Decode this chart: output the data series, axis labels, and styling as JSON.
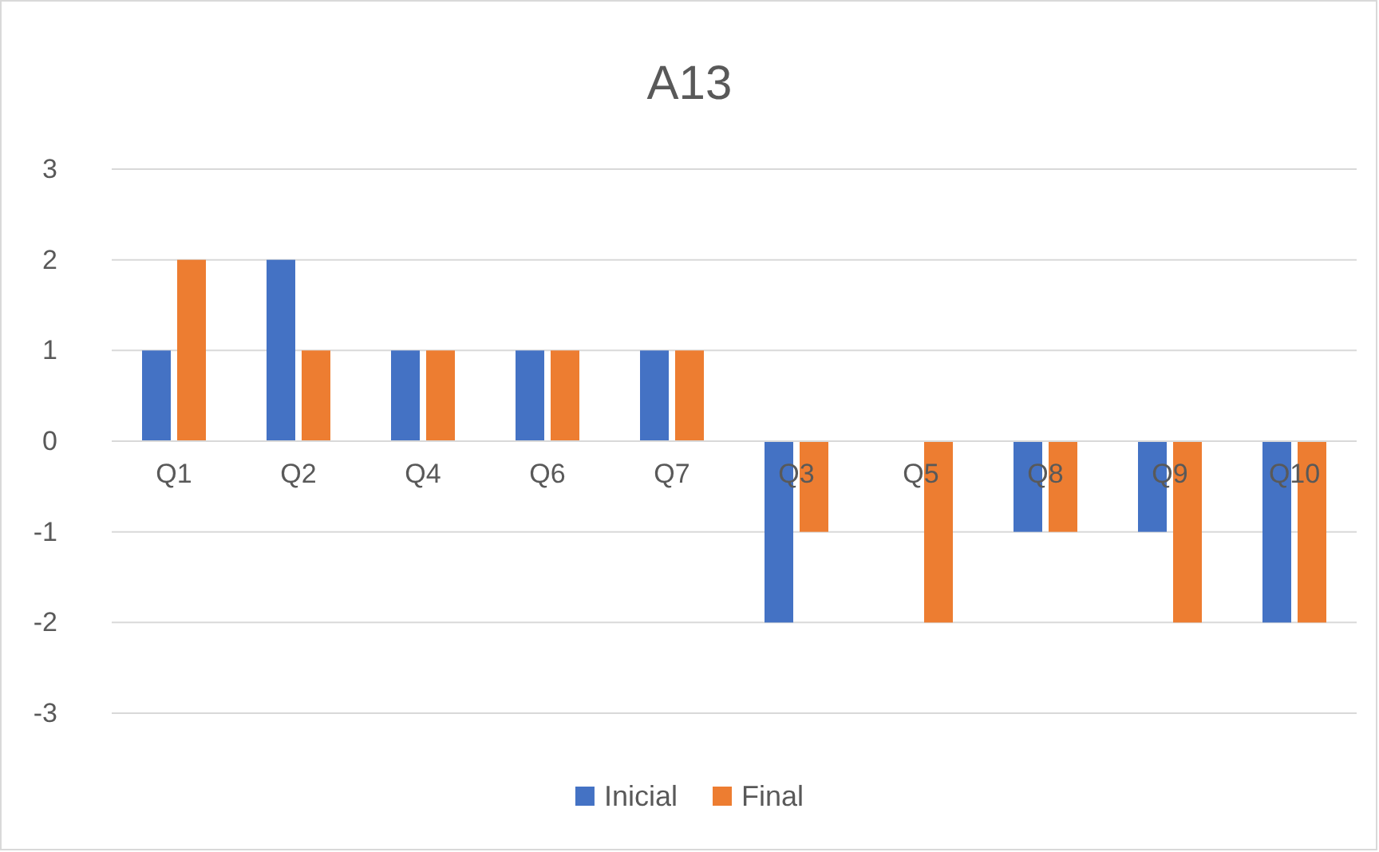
{
  "chart_data": {
    "type": "bar",
    "title": "A13",
    "categories": [
      "Q1",
      "Q2",
      "Q4",
      "Q6",
      "Q7",
      "Q3",
      "Q5",
      "Q8",
      "Q9",
      "Q10"
    ],
    "series": [
      {
        "name": "Inicial",
        "color": "#4472c4",
        "values": [
          1,
          2,
          1,
          1,
          1,
          -2,
          0,
          -1,
          -1,
          -2
        ]
      },
      {
        "name": "Final",
        "color": "#ed7d31",
        "values": [
          2,
          1,
          1,
          1,
          1,
          -1,
          -2,
          -1,
          -2,
          -2
        ]
      }
    ],
    "ylim": [
      -3,
      3
    ],
    "yticks": [
      -3,
      -2,
      -1,
      0,
      1,
      2,
      3
    ],
    "grid": "y",
    "legend": "bottom"
  }
}
